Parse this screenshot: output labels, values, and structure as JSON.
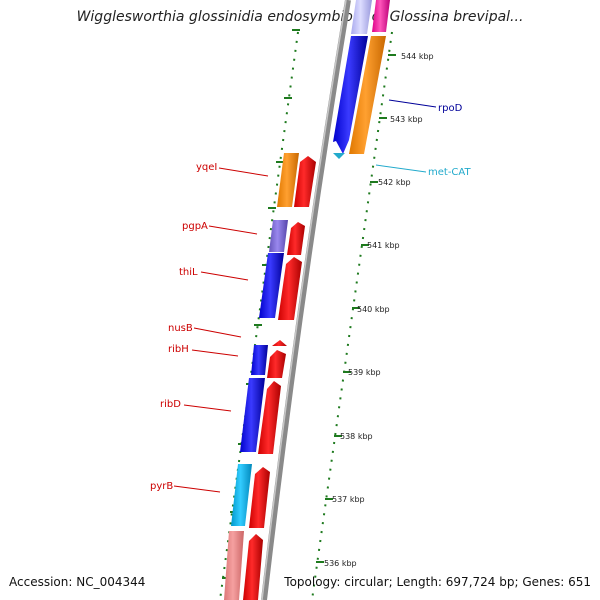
{
  "title": "Wigglesworthia glossinidia endosymbiont of Glossina brevipal...",
  "accession": "Accession: NC_004344",
  "summary": "Topology: circular; Length: 697,724 bp; Genes: 651",
  "colors": {
    "backbone": "#888888",
    "tick": "#1e7a1e",
    "gene_label_left": "#cc0000",
    "rpoD_label": "#000099",
    "metCAT_label": "#22aacc"
  },
  "scale_labels": [
    "544 kbp",
    "543 kbp",
    "542 kbp",
    "541 kbp",
    "540 kbp",
    "539 kbp",
    "538 kbp",
    "537 kbp",
    "536 kbp"
  ],
  "genes_left": [
    {
      "label": "yqeI"
    },
    {
      "label": "pgpA"
    },
    {
      "label": "thiL"
    },
    {
      "label": "nusB"
    },
    {
      "label": "ribH"
    },
    {
      "label": "ribD"
    },
    {
      "label": "pyrB"
    }
  ],
  "genes_right": [
    {
      "label": "rpoD"
    },
    {
      "label": "met-CAT"
    }
  ]
}
